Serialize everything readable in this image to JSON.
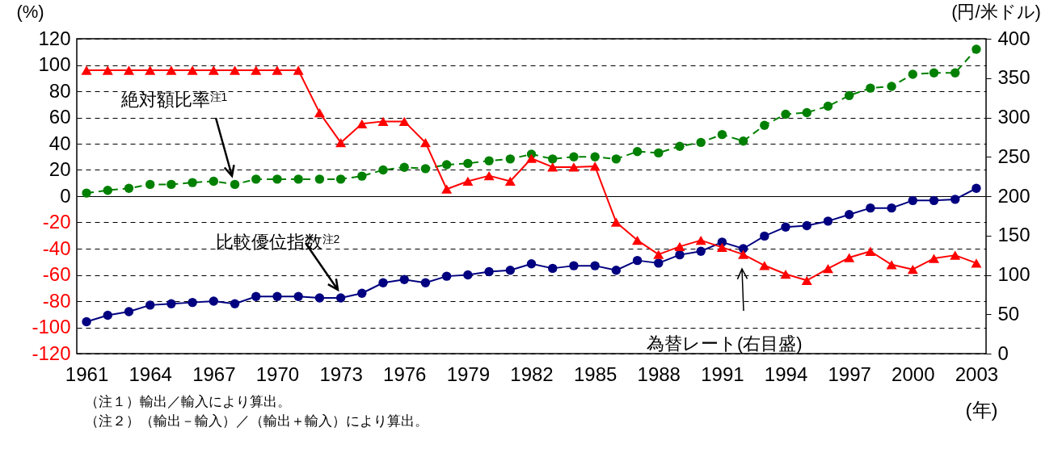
{
  "chart_data": {
    "type": "line",
    "categories": [
      "1961",
      null,
      null,
      "1964",
      null,
      null,
      "1967",
      null,
      null,
      "1970",
      null,
      null,
      "1973",
      null,
      null,
      "1976",
      null,
      null,
      "1979",
      null,
      null,
      "1982",
      null,
      null,
      "1985",
      null,
      null,
      "1988",
      null,
      null,
      "1991",
      null,
      null,
      "1994",
      null,
      null,
      "1997",
      null,
      null,
      "2000",
      null,
      null,
      "2003"
    ],
    "series": [
      {
        "name": "絶対額比率$^{注1}$",
        "color": "#008000",
        "marker": "circle",
        "line_style": "dashed",
        "values": [
          2.4,
          4.5,
          6,
          9,
          9,
          10.4,
          11.4,
          9,
          13,
          13,
          13,
          13,
          13,
          15.3,
          20,
          22,
          21,
          24,
          25,
          27,
          28.4,
          32,
          28.4,
          30,
          30,
          28.4,
          34,
          33,
          38,
          41,
          47,
          42,
          54,
          62.5,
          63.7,
          68.6,
          76.7,
          82.4,
          83.7,
          92.9,
          94,
          94,
          112
        ]
      },
      {
        "name": "比較優位指数$^{注2}$",
        "color": "#000080",
        "marker": "circle",
        "line_style": "solid",
        "values": [
          -95.7,
          -90.8,
          -88,
          -83,
          -82,
          -81,
          -80,
          -82,
          -76.5,
          -76.5,
          -76.5,
          -77.5,
          -77.5,
          -74,
          -66,
          -63.5,
          -66,
          -61,
          -60,
          -57.5,
          -56.5,
          -51.5,
          -55,
          -53,
          -53,
          -56.5,
          -49,
          -51,
          -44.7,
          -42,
          -35,
          -40,
          -30.4,
          -23.5,
          -22.5,
          -19,
          -14,
          -9,
          -9,
          -3.3,
          -3.3,
          -2.4,
          6
        ]
      },
      {
        "name": "為替レート(右目盛)",
        "color": "#ff0000",
        "marker": "triangle",
        "line_style": "solid",
        "axis": "y2",
        "values": [
          360,
          360,
          360,
          360,
          360,
          360,
          360,
          360,
          360,
          360,
          360,
          306,
          268,
          292,
          295,
          295,
          268,
          209,
          219,
          226,
          219,
          248,
          237,
          237,
          238,
          167,
          144,
          126,
          136,
          144,
          135,
          126,
          112,
          101,
          93,
          108,
          122,
          130,
          113,
          107,
          121,
          125,
          115
        ]
      }
    ],
    "xlabel": "(年)",
    "ylabel": "(%)",
    "y2label": "(円/米ドル)",
    "ylim": [
      -120,
      120
    ],
    "yticks": [
      -120,
      -100,
      -80,
      -60,
      -40,
      -20,
      0,
      20,
      40,
      60,
      80,
      100,
      120
    ],
    "y2lim": [
      0,
      400
    ],
    "y2ticks": [
      0,
      50,
      100,
      150,
      200,
      250,
      300,
      350,
      400
    ],
    "grid": "y",
    "legend": false,
    "annotations": [
      "（注１）輸出／輸入により算出。",
      "（注２）（輸出－輸入）／（輸出＋輸入）により算出。"
    ]
  }
}
